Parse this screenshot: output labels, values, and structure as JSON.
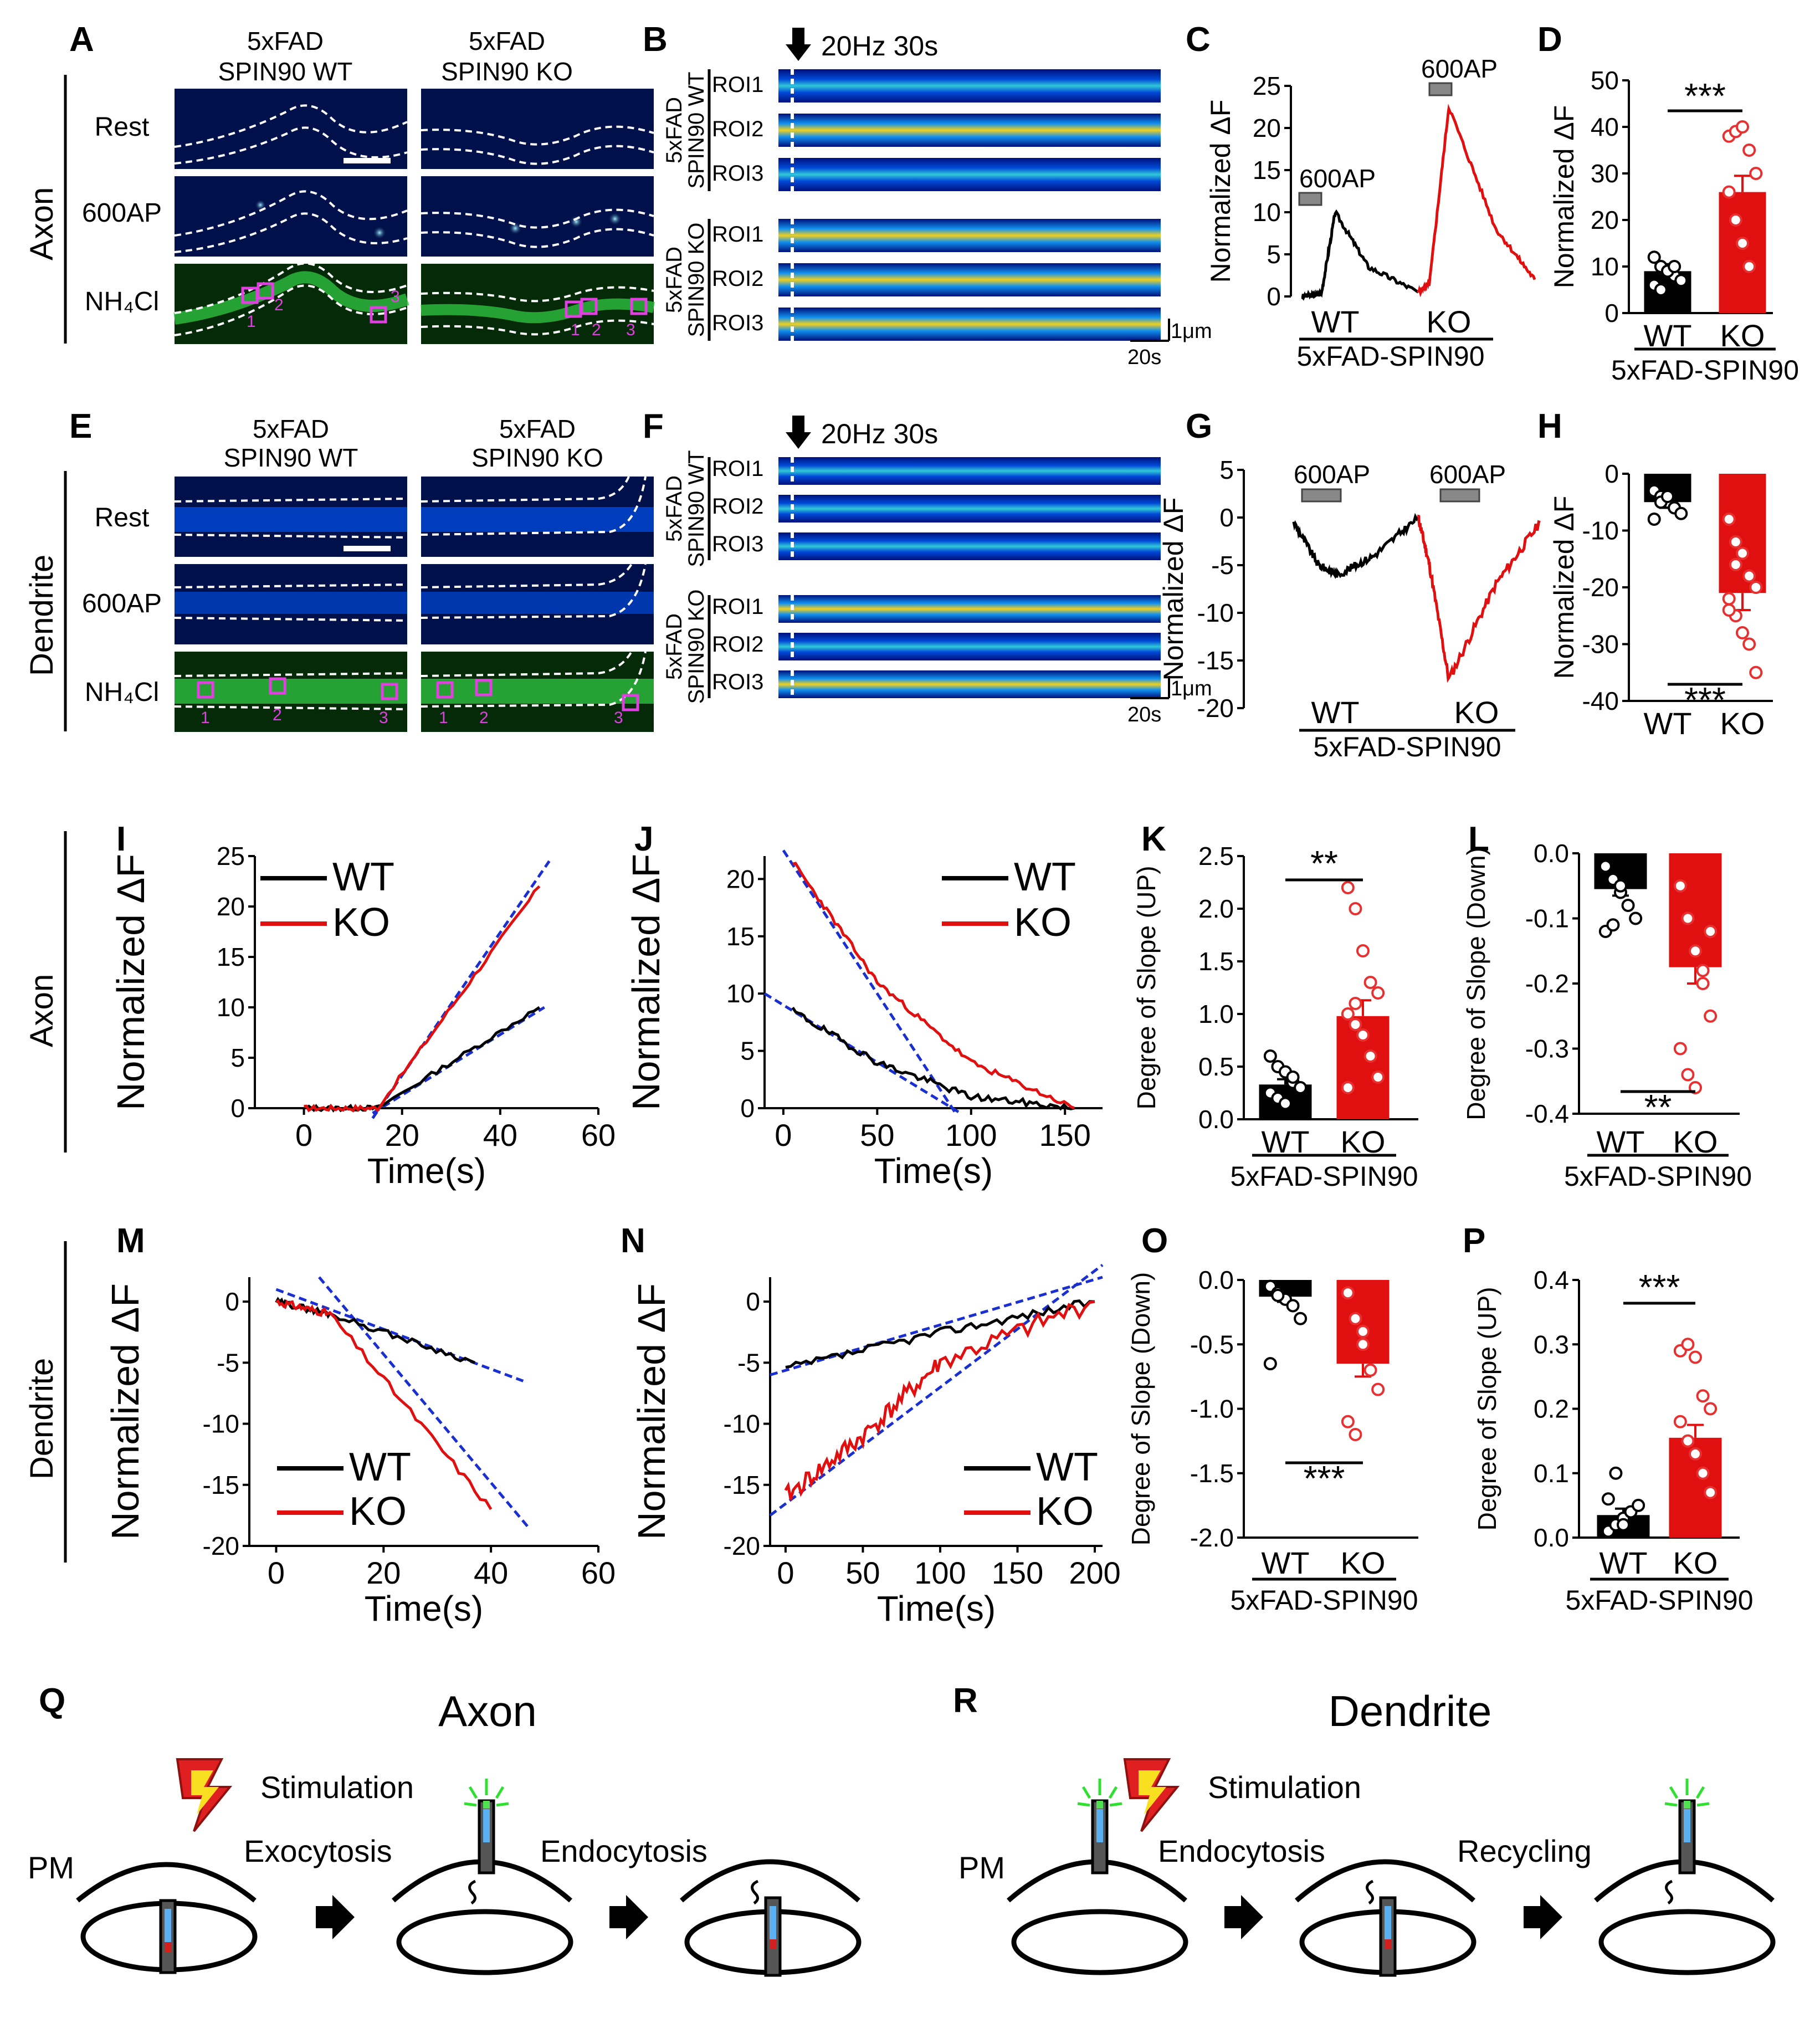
{
  "panel_letters": [
    "A",
    "B",
    "C",
    "D",
    "E",
    "F",
    "G",
    "H",
    "I",
    "J",
    "K",
    "L",
    "M",
    "N",
    "O",
    "P",
    "Q",
    "R"
  ],
  "row_labels": {
    "axon": "Axon",
    "dendrite": "Dendrite"
  },
  "micrograph_headers": {
    "wt_line1": "5xFAD",
    "wt_line2": "SPIN90  WT",
    "ko_line1": "5xFAD",
    "ko_line2": "SPIN90  KO"
  },
  "micrograph_conditions": [
    "Rest",
    "600AP",
    "NH₄Cl"
  ],
  "roi_markers": [
    "1",
    "2",
    "3"
  ],
  "kymograph": {
    "stimulus": "20Hz 30s",
    "rois": [
      "ROI1",
      "ROI2",
      "ROI3"
    ],
    "group_wt_line1": "5xFAD",
    "group_wt_line2": "SPIN90 WT",
    "group_ko_line1": "5xFAD",
    "group_ko_line2": "SPIN90 KO",
    "scale_y": "1μm",
    "scale_x": "20s"
  },
  "group_label": "5xFAD-SPIN90",
  "ylabel_norm": "Normalized ΔF",
  "xlabel_time": "Time(s)",
  "legend": {
    "wt": "WT",
    "ko": "KO"
  },
  "trace_labels": {
    "ap": "600AP",
    "wt": "WT",
    "ko": "KO"
  },
  "colors": {
    "wt": "#000000",
    "ko": "#e01010",
    "fit": "#1a2fd0",
    "scatter_ko": "#e83030",
    "roi_box": "#e040e0"
  },
  "chart_data": [
    {
      "id": "C",
      "type": "line",
      "title": "",
      "ylabel": "Normalized ΔF",
      "xlabel": "5xFAD-SPIN90",
      "ylim": [
        0,
        25
      ],
      "yticks": [
        "0",
        "5",
        "10",
        "15",
        "20",
        "25"
      ],
      "series": [
        {
          "name": "WT",
          "peak": 10
        },
        {
          "name": "KO",
          "peak": 22.5
        }
      ],
      "annotations": [
        "600AP",
        "600AP"
      ]
    },
    {
      "id": "D",
      "type": "bar",
      "ylabel": "Normalized ΔF",
      "categories": [
        "WT",
        "KO"
      ],
      "values": [
        9,
        26
      ],
      "errors": [
        1.5,
        3.5
      ],
      "ylim": [
        0,
        50
      ],
      "yticks": [
        "0",
        "10",
        "20",
        "30",
        "40",
        "50"
      ],
      "significance": "***",
      "points": {
        "WT": [
          12,
          10,
          9,
          8,
          7,
          6,
          5,
          9,
          10
        ],
        "KO": [
          38,
          39,
          40,
          35,
          30,
          26,
          20,
          15,
          10
        ]
      }
    },
    {
      "id": "G",
      "type": "line",
      "ylabel": "Normalized ΔF",
      "xlabel": "5xFAD-SPIN90",
      "ylim": [
        -20,
        5
      ],
      "yticks": [
        "5",
        "0",
        "-5",
        "-10",
        "-15",
        "-20"
      ],
      "series": [
        {
          "name": "WT",
          "trough": -6
        },
        {
          "name": "KO",
          "trough": -17
        }
      ],
      "annotations": [
        "600AP",
        "600AP"
      ]
    },
    {
      "id": "H",
      "type": "bar",
      "ylabel": "Normalized ΔF",
      "categories": [
        "WT",
        "KO"
      ],
      "values": [
        -5,
        -21
      ],
      "errors": [
        1,
        3
      ],
      "ylim": [
        -40,
        0
      ],
      "yticks": [
        "0",
        "-10",
        "-20",
        "-30",
        "-40"
      ],
      "significance": "***",
      "points": {
        "WT": [
          -3,
          -4,
          -5,
          -6,
          -7,
          -8,
          -5,
          -4
        ],
        "KO": [
          -8,
          -12,
          -14,
          -18,
          -20,
          -22,
          -25,
          -28,
          -30,
          -35,
          -24,
          -16
        ]
      }
    },
    {
      "id": "I",
      "type": "line",
      "xlabel": "Time(s)",
      "ylabel": "Normalized ΔF",
      "xlim": [
        -10,
        60
      ],
      "ylim": [
        0,
        25
      ],
      "xticks": [
        "0",
        "20",
        "40",
        "60"
      ],
      "yticks": [
        "0",
        "5",
        "10",
        "15",
        "20",
        "25"
      ],
      "series": [
        {
          "name": "WT",
          "x": [
            0,
            15,
            48
          ],
          "y": [
            0,
            0,
            10
          ]
        },
        {
          "name": "KO",
          "x": [
            0,
            15,
            48
          ],
          "y": [
            0,
            0,
            22
          ]
        }
      ]
    },
    {
      "id": "J",
      "type": "line",
      "xlabel": "Time(s)",
      "ylabel": "Normalized ΔF",
      "xlim": [
        -10,
        170
      ],
      "ylim": [
        0,
        22
      ],
      "xticks": [
        "0",
        "50",
        "100",
        "150"
      ],
      "yticks": [
        "0",
        "5",
        "10",
        "15",
        "20"
      ],
      "series": [
        {
          "name": "WT",
          "x": [
            5,
            50,
            100,
            155
          ],
          "y": [
            8.5,
            4,
            1,
            0
          ]
        },
        {
          "name": "KO",
          "x": [
            5,
            50,
            100,
            155
          ],
          "y": [
            21.5,
            11,
            4,
            0
          ]
        }
      ]
    },
    {
      "id": "K",
      "type": "bar",
      "ylabel": "Degree of Slope (UP)",
      "categories": [
        "WT",
        "KO"
      ],
      "values": [
        0.33,
        0.98
      ],
      "errors": [
        0.05,
        0.15
      ],
      "ylim": [
        0,
        2.5
      ],
      "yticks": [
        "0.0",
        "0.5",
        "1.0",
        "1.5",
        "2.0",
        "2.5"
      ],
      "significance": "**",
      "points": {
        "WT": [
          0.6,
          0.5,
          0.45,
          0.35,
          0.3,
          0.25,
          0.2,
          0.15,
          0.4
        ],
        "KO": [
          2.2,
          2.0,
          1.6,
          1.3,
          1.2,
          1.0,
          0.9,
          0.8,
          0.6,
          0.4,
          0.3,
          1.1
        ]
      }
    },
    {
      "id": "L",
      "type": "bar",
      "ylabel": "Degree of Slope (Down)",
      "categories": [
        "WT",
        "KO"
      ],
      "values": [
        -0.055,
        -0.175
      ],
      "errors": [
        0.01,
        0.025
      ],
      "ylim": [
        -0.4,
        0.0
      ],
      "yticks": [
        "0.0",
        "-0.1",
        "-0.2",
        "-0.3",
        "-0.4"
      ],
      "significance": "**",
      "points": {
        "WT": [
          -0.02,
          -0.04,
          -0.06,
          -0.08,
          -0.1,
          -0.12,
          -0.11,
          -0.05
        ],
        "KO": [
          -0.05,
          -0.1,
          -0.15,
          -0.2,
          -0.25,
          -0.3,
          -0.34,
          -0.36,
          -0.18,
          -0.12
        ]
      }
    },
    {
      "id": "M",
      "type": "line",
      "xlabel": "Time(s)",
      "ylabel": "Normalized ΔF",
      "xlim": [
        -5,
        60
      ],
      "ylim": [
        -20,
        2
      ],
      "xticks": [
        "0",
        "20",
        "40",
        "60"
      ],
      "yticks": [
        "0",
        "-5",
        "-10",
        "-15",
        "-20"
      ],
      "series": [
        {
          "name": "WT",
          "x": [
            0,
            10,
            37
          ],
          "y": [
            0,
            -1,
            -5
          ]
        },
        {
          "name": "KO",
          "x": [
            0,
            10,
            40
          ],
          "y": [
            0,
            -1,
            -17
          ]
        }
      ]
    },
    {
      "id": "N",
      "type": "line",
      "xlabel": "Time(s)",
      "ylabel": "Normalized ΔF",
      "xlim": [
        -10,
        205
      ],
      "ylim": [
        -20,
        2
      ],
      "xticks": [
        "0",
        "50",
        "100",
        "150",
        "200"
      ],
      "yticks": [
        "0",
        "-5",
        "-10",
        "-15",
        "-20"
      ],
      "series": [
        {
          "name": "WT",
          "x": [
            0,
            100,
            200
          ],
          "y": [
            -5.5,
            -2.5,
            0
          ]
        },
        {
          "name": "KO",
          "x": [
            0,
            50,
            100,
            200
          ],
          "y": [
            -16,
            -11,
            -5,
            0
          ]
        }
      ]
    },
    {
      "id": "O",
      "type": "bar",
      "ylabel": "Degree of Slope (Down)",
      "categories": [
        "WT",
        "KO"
      ],
      "values": [
        -0.13,
        -0.65
      ],
      "errors": [
        0.04,
        0.1
      ],
      "ylim": [
        -2.0,
        0.0
      ],
      "yticks": [
        "0.0",
        "-0.5",
        "-1.0",
        "-1.5",
        "-2.0"
      ],
      "significance": "***",
      "points": {
        "WT": [
          -0.05,
          -0.1,
          -0.15,
          -0.2,
          -0.3,
          -0.65,
          -0.12
        ],
        "KO": [
          -0.1,
          -0.3,
          -0.5,
          -0.7,
          -0.85,
          -1.1,
          -1.2,
          -0.4
        ]
      }
    },
    {
      "id": "P",
      "type": "bar",
      "ylabel": "Degree of Slope (UP)",
      "categories": [
        "WT",
        "KO"
      ],
      "values": [
        0.035,
        0.155
      ],
      "errors": [
        0.01,
        0.02
      ],
      "ylim": [
        0,
        0.4
      ],
      "yticks": [
        "0.0",
        "0.1",
        "0.2",
        "0.3",
        "0.4"
      ],
      "significance": "***",
      "points": {
        "WT": [
          0.01,
          0.02,
          0.03,
          0.04,
          0.05,
          0.06,
          0.1,
          0.02
        ],
        "KO": [
          0.29,
          0.3,
          0.28,
          0.22,
          0.2,
          0.18,
          0.15,
          0.13,
          0.1,
          0.07
        ]
      }
    }
  ],
  "schematic": {
    "axon_title": "Axon",
    "dendrite_title": "Dendrite",
    "stimulation": "Stimulation",
    "pm": "PM",
    "axon_steps": [
      "Exocytosis",
      "Endocytosis"
    ],
    "dendrite_steps": [
      "Endocytosis",
      "Recycling"
    ]
  }
}
